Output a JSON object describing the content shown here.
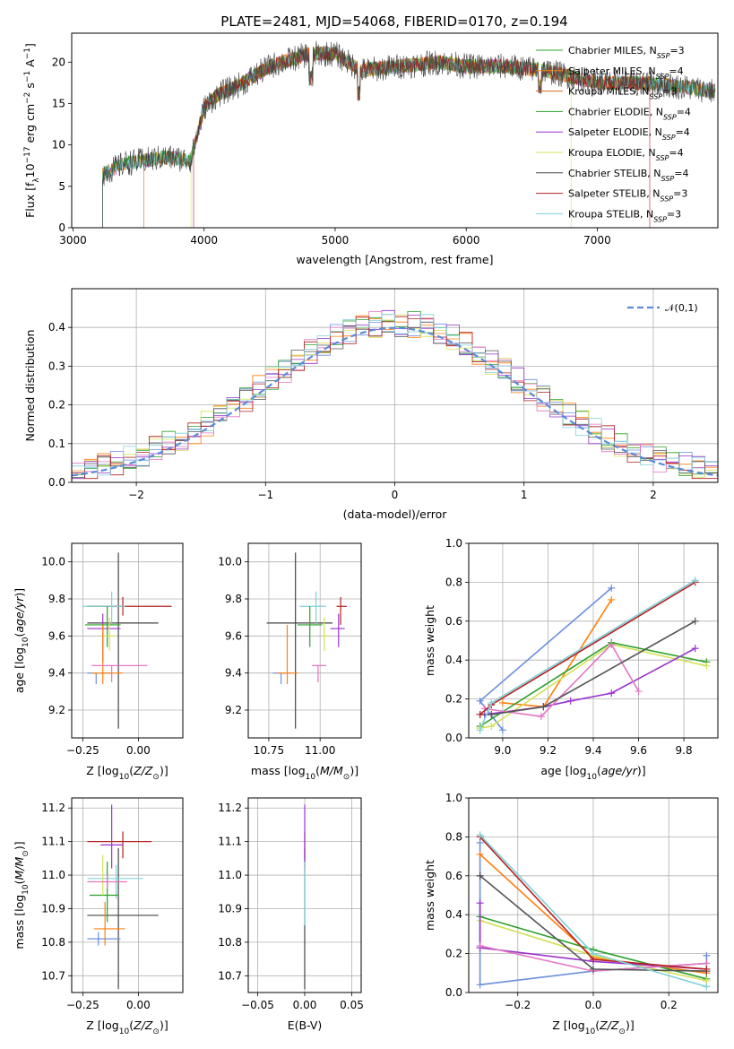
{
  "title": "PLATE=2481, MJD=54068, FIBERID=0170, z=0.194",
  "chart_data": [
    {
      "id": "spectrum",
      "type": "line",
      "xlabel": "wavelength [Angstrom, rest frame]",
      "ylabel": "Flux [f_λ 10^-17 erg cm^-2 s^-1 A^-1]",
      "xlim": [
        2990,
        7920
      ],
      "ylim": [
        0,
        23.5
      ],
      "xticks": [
        3000,
        4000,
        5000,
        6000,
        7000
      ],
      "yticks": [
        0,
        5,
        10,
        15,
        20
      ],
      "grid": false,
      "legend_position": "right",
      "legend": [
        {
          "label": "Chabrier MILES, N_SSP=3",
          "color": "#2ca02c"
        },
        {
          "label": "Salpeter MILES, N_SSP=4",
          "color": "#ff7f0e"
        },
        {
          "label": "Kroupa MILES, N_SSP=3",
          "color": "#d2691e"
        },
        {
          "label": "Chabrier ELODIE, N_SSP=4",
          "color": "#2ca02c"
        },
        {
          "label": "Salpeter ELODIE, N_SSP=4",
          "color": "#9932cc"
        },
        {
          "label": "Kroupa ELODIE, N_SSP=4",
          "color": "#d4e157"
        },
        {
          "label": "Chabrier STELIB, N_SSP=4",
          "color": "#444444"
        },
        {
          "label": "Salpeter STELIB, N_SSP=3",
          "color": "#b22222"
        },
        {
          "label": "Kroupa STELIB, N_SSP=3",
          "color": "#80d0d8"
        }
      ],
      "data_coverage_start": [
        {
          "label": "Chabrier STELIB, N_SSP=4",
          "start_wavelength": 3225
        },
        {
          "label": "Kroupa MILES, N_SSP=3",
          "start_wavelength": 3540
        },
        {
          "label": "Kroupa ELODIE, N_SSP=4",
          "start_wavelength": 3900
        },
        {
          "label": "Salpeter STELIB, N_SSP=3",
          "start_wavelength": 3920
        }
      ],
      "data_coverage_end": [
        {
          "label": "Kroupa ELODIE, N_SSP=4",
          "end_wavelength": 6800
        },
        {
          "label": "Salpeter STELIB, N_SSP=3",
          "end_wavelength": 7400
        }
      ],
      "continuum": {
        "wavelength": [
          3225,
          3400,
          3700,
          3900,
          4000,
          4100,
          4300,
          4500,
          4800,
          5000,
          5200,
          5500,
          5800,
          6000,
          6300,
          6600,
          7000,
          7400,
          7900
        ],
        "flux": [
          6.5,
          7.8,
          8.5,
          8.2,
          14.5,
          16.0,
          17.5,
          19.5,
          21.0,
          21.0,
          19.0,
          19.5,
          20.0,
          19.5,
          19.5,
          19.0,
          17.5,
          17.5,
          16.5
        ]
      }
    },
    {
      "id": "residuals",
      "type": "step",
      "xlabel": "(data-model)/error",
      "ylabel": "Normed distribution",
      "xlim": [
        -2.5,
        2.5
      ],
      "ylim": [
        0,
        0.5
      ],
      "xticks": [
        -2,
        -1,
        0,
        1,
        2
      ],
      "yticks": [
        0.0,
        0.1,
        0.2,
        0.3,
        0.4
      ],
      "grid": true,
      "legend_position": "upper right",
      "legend": [
        {
          "label": "𝒩(0,1)",
          "color": "#5b8bd9",
          "style": "dashed"
        }
      ],
      "gaussian": {
        "mean": 0,
        "sigma": 1
      },
      "bin_width": 0.1,
      "series_colors": [
        "#6b8fdf",
        "#ff7f0e",
        "#2ca02c",
        "#d4e157",
        "#9932cc",
        "#e377c2",
        "#555555",
        "#b22222",
        "#80d0d8"
      ]
    },
    {
      "id": "age_vs_Z",
      "type": "errorbar",
      "xlabel": "Z [log10(Z/Z☉)]",
      "ylabel": "age [log10(age/yr)]",
      "xlim": [
        -0.3,
        0.2
      ],
      "ylim": [
        9.05,
        10.1
      ],
      "xticks": [
        -0.25,
        0.0
      ],
      "yticks": [
        9.2,
        9.4,
        9.6,
        9.8,
        10.0
      ],
      "grid": true,
      "points": [
        {
          "x": -0.09,
          "y": 9.67,
          "xerr": [
            0.14,
            0.18
          ],
          "yerr": [
            0.57,
            0.38
          ],
          "color": "#444444"
        },
        {
          "x": -0.07,
          "y": 9.76,
          "xerr": [
            0.16,
            0.22
          ],
          "yerr": [
            0.05,
            0.05
          ],
          "color": "#b22222"
        },
        {
          "x": -0.12,
          "y": 9.76,
          "xerr": [
            0.13,
            0.06
          ],
          "yerr": [
            0.1,
            0.08
          ],
          "color": "#80d0d8"
        },
        {
          "x": -0.16,
          "y": 9.64,
          "xerr": [
            0.07,
            0.08
          ],
          "yerr": [
            0.18,
            0.08
          ],
          "color": "#9932cc"
        },
        {
          "x": -0.14,
          "y": 9.66,
          "xerr": [
            0.1,
            0.06
          ],
          "yerr": [
            0.12,
            0.1
          ],
          "color": "#2ca02c"
        },
        {
          "x": -0.13,
          "y": 9.6,
          "xerr": [
            0.03,
            0.03
          ],
          "yerr": [
            0.08,
            0.1
          ],
          "color": "#d4e157"
        },
        {
          "x": -0.19,
          "y": 9.4,
          "xerr": [
            0.04,
            0.07
          ],
          "yerr": [
            0.06,
            0.0
          ],
          "color": "#6b8fdf"
        },
        {
          "x": -0.16,
          "y": 9.4,
          "xerr": [
            0.05,
            0.09
          ],
          "yerr": [
            0.06,
            0.26
          ],
          "color": "#ff7f0e"
        },
        {
          "x": -0.12,
          "y": 9.44,
          "xerr": [
            0.09,
            0.16
          ],
          "yerr": [
            0.09,
            0.0
          ],
          "color": "#e377c2"
        }
      ]
    },
    {
      "id": "age_vs_mass",
      "type": "errorbar",
      "xlabel": "mass [log10(M/M☉)]",
      "ylabel": "",
      "xlim": [
        10.65,
        11.2
      ],
      "ylim": [
        9.05,
        10.1
      ],
      "xticks": [
        10.75,
        11.0
      ],
      "xticklabels": [
        "10.75",
        "11.00"
      ],
      "yticks": [
        9.2,
        9.4,
        9.6,
        9.8,
        10.0
      ],
      "grid": true,
      "points": [
        {
          "x": 10.88,
          "y": 9.67,
          "xerr": [
            0.14,
            0.18
          ],
          "yerr": [
            0.57,
            0.38
          ],
          "color": "#444444"
        },
        {
          "x": 11.1,
          "y": 9.76,
          "xerr": [
            0.02,
            0.03
          ],
          "yerr": [
            0.1,
            0.05
          ],
          "color": "#b22222"
        },
        {
          "x": 10.98,
          "y": 9.76,
          "xerr": [
            0.08,
            0.05
          ],
          "yerr": [
            0.1,
            0.08
          ],
          "color": "#80d0d8"
        },
        {
          "x": 11.09,
          "y": 9.64,
          "xerr": [
            0.04,
            0.03
          ],
          "yerr": [
            0.1,
            0.08
          ],
          "color": "#9932cc"
        },
        {
          "x": 10.95,
          "y": 9.66,
          "xerr": [
            0.06,
            0.06
          ],
          "yerr": [
            0.12,
            0.1
          ],
          "color": "#2ca02c"
        },
        {
          "x": 11.02,
          "y": 9.6,
          "xerr": [
            0.01,
            0.02
          ],
          "yerr": [
            0.08,
            0.1
          ],
          "color": "#d4e157"
        },
        {
          "x": 10.81,
          "y": 9.4,
          "xerr": [
            0.04,
            0.05
          ],
          "yerr": [
            0.06,
            0.0
          ],
          "color": "#6b8fdf"
        },
        {
          "x": 10.84,
          "y": 9.4,
          "xerr": [
            0.05,
            0.05
          ],
          "yerr": [
            0.06,
            0.26
          ],
          "color": "#ff7f0e"
        },
        {
          "x": 10.99,
          "y": 9.44,
          "xerr": [
            0.03,
            0.04
          ],
          "yerr": [
            0.09,
            0.0
          ],
          "color": "#e377c2"
        }
      ]
    },
    {
      "id": "weight_vs_age",
      "type": "line",
      "xlabel": "age [log10(age/yr)]",
      "ylabel": "mass weight",
      "xlim": [
        8.85,
        9.95
      ],
      "ylim": [
        0,
        1
      ],
      "xticks": [
        9.0,
        9.2,
        9.4,
        9.6,
        9.8
      ],
      "yticks": [
        0.0,
        0.2,
        0.4,
        0.6,
        0.8,
        1.0
      ],
      "grid": true,
      "series": [
        {
          "color": "#6b8fdf",
          "x": [
            9.0,
            8.9,
            9.48
          ],
          "y": [
            0.04,
            0.19,
            0.77
          ]
        },
        {
          "color": "#ff7f0e",
          "x": [
            9.0,
            9.18,
            9.48
          ],
          "y": [
            0.18,
            0.16,
            0.71
          ]
        },
        {
          "color": "#2ca02c",
          "x": [
            8.9,
            9.48,
            9.9
          ],
          "y": [
            0.06,
            0.49,
            0.39
          ]
        },
        {
          "color": "#d4e157",
          "x": [
            8.9,
            8.95,
            9.48,
            9.9
          ],
          "y": [
            0.05,
            0.06,
            0.48,
            0.37
          ]
        },
        {
          "color": "#9932cc",
          "x": [
            8.92,
            9.18,
            9.3,
            9.48,
            9.85
          ],
          "y": [
            0.12,
            0.16,
            0.19,
            0.23,
            0.46
          ]
        },
        {
          "color": "#e377c2",
          "x": [
            8.92,
            9.17,
            9.48,
            9.6
          ],
          "y": [
            0.15,
            0.11,
            0.48,
            0.24
          ]
        },
        {
          "color": "#555555",
          "x": [
            8.9,
            8.95,
            9.18,
            9.85
          ],
          "y": [
            0.12,
            0.12,
            0.16,
            0.6
          ]
        },
        {
          "color": "#b22222",
          "x": [
            8.9,
            8.95,
            9.85
          ],
          "y": [
            0.12,
            0.17,
            0.8
          ]
        },
        {
          "color": "#80d0d8",
          "x": [
            8.9,
            8.95,
            9.85
          ],
          "y": [
            0.04,
            0.18,
            0.81
          ]
        }
      ]
    },
    {
      "id": "mass_vs_Z",
      "type": "errorbar",
      "xlabel": "Z [log10(Z/Z☉)]",
      "ylabel": "mass [log10(M/M☉)]",
      "xlim": [
        -0.3,
        0.2
      ],
      "ylim": [
        10.65,
        11.23
      ],
      "xticks": [
        -0.25,
        0.0
      ],
      "yticks": [
        10.7,
        10.8,
        10.9,
        11.0,
        11.1,
        11.2
      ],
      "grid": true,
      "points": [
        {
          "x": -0.09,
          "y": 10.88,
          "xerr": [
            0.14,
            0.18
          ],
          "yerr": [
            0.22,
            0.2
          ],
          "color": "#444444"
        },
        {
          "x": -0.07,
          "y": 11.1,
          "xerr": [
            0.16,
            0.13
          ],
          "yerr": [
            0.05,
            0.03
          ],
          "color": "#b22222"
        },
        {
          "x": -0.1,
          "y": 10.99,
          "xerr": [
            0.13,
            0.12
          ],
          "yerr": [
            0.06,
            0.04
          ],
          "color": "#80d0d8"
        },
        {
          "x": -0.12,
          "y": 11.09,
          "xerr": [
            0.05,
            0.05
          ],
          "yerr": [
            0.07,
            0.12
          ],
          "color": "#9932cc"
        },
        {
          "x": -0.14,
          "y": 10.94,
          "xerr": [
            0.08,
            0.05
          ],
          "yerr": [
            0.08,
            0.1
          ],
          "color": "#2ca02c"
        },
        {
          "x": -0.16,
          "y": 10.98,
          "xerr": [
            0.02,
            0.02
          ],
          "yerr": [
            0.04,
            0.08
          ],
          "color": "#d4e157"
        },
        {
          "x": -0.18,
          "y": 10.81,
          "xerr": [
            0.05,
            0.1
          ],
          "yerr": [
            0.02,
            0.02
          ],
          "color": "#6b8fdf"
        },
        {
          "x": -0.15,
          "y": 10.84,
          "xerr": [
            0.05,
            0.09
          ],
          "yerr": [
            0.05,
            0.08
          ],
          "color": "#ff7f0e"
        },
        {
          "x": -0.14,
          "y": 10.98,
          "xerr": [
            0.09,
            0.09
          ],
          "yerr": [
            0.02,
            0.02
          ],
          "color": "#e377c2"
        }
      ]
    },
    {
      "id": "mass_vs_ebv",
      "type": "errorbar",
      "xlabel": "E(B-V)",
      "ylabel": "",
      "xlim": [
        -0.06,
        0.06
      ],
      "ylim": [
        10.65,
        11.23
      ],
      "xticks": [
        -0.05,
        0.0,
        0.05
      ],
      "xticklabels": [
        "−0.05",
        "0.00",
        "0.05"
      ],
      "yticks": [
        10.7,
        10.8,
        10.9,
        11.0,
        11.1,
        11.2
      ],
      "grid": true,
      "points": [
        {
          "x": 0.0,
          "y": 10.88,
          "xerr": [
            0,
            0
          ],
          "yerr": [
            0.22,
            0.2
          ],
          "color": "#444444"
        },
        {
          "x": 0.0,
          "y": 11.1,
          "xerr": [
            0,
            0
          ],
          "yerr": [
            0.05,
            0.03
          ],
          "color": "#b22222"
        },
        {
          "x": 0.0,
          "y": 11.09,
          "xerr": [
            0,
            0
          ],
          "yerr": [
            0.07,
            0.12
          ],
          "color": "#9932cc"
        },
        {
          "x": 0.0,
          "y": 10.99,
          "xerr": [
            0,
            0
          ],
          "yerr": [
            0.14,
            0.05
          ],
          "color": "#80d0d8"
        }
      ]
    },
    {
      "id": "weight_vs_Z",
      "type": "line",
      "xlabel": "Z [log10(Z/Z☉)]",
      "ylabel": "mass weight",
      "xlim": [
        -0.33,
        0.33
      ],
      "ylim": [
        0,
        1
      ],
      "xticks": [
        -0.2,
        0.0,
        0.2
      ],
      "xticklabels": [
        "−0.2",
        "0.0",
        "0.2"
      ],
      "yticks": [
        0.0,
        0.2,
        0.4,
        0.6,
        0.8,
        1.0
      ],
      "grid": true,
      "series": [
        {
          "color": "#6b8fdf",
          "x": [
            -0.3,
            -0.3,
            0.0,
            0.3,
            0.3
          ],
          "y": [
            0.77,
            0.04,
            0.11,
            0.15,
            0.19
          ]
        },
        {
          "color": "#ff7f0e",
          "x": [
            -0.3,
            0.0,
            0.3
          ],
          "y": [
            0.71,
            0.18,
            0.1
          ]
        },
        {
          "color": "#2ca02c",
          "x": [
            -0.3,
            0.0,
            0.3
          ],
          "y": [
            0.39,
            0.22,
            0.07
          ]
        },
        {
          "color": "#d4e157",
          "x": [
            -0.3,
            0.0,
            0.3
          ],
          "y": [
            0.37,
            0.19,
            0.06
          ]
        },
        {
          "color": "#9932cc",
          "x": [
            -0.3,
            -0.3,
            0.0,
            0.3
          ],
          "y": [
            0.46,
            0.23,
            0.16,
            0.12
          ]
        },
        {
          "color": "#e377c2",
          "x": [
            -0.3,
            0.0,
            0.3
          ],
          "y": [
            0.24,
            0.11,
            0.15
          ]
        },
        {
          "color": "#555555",
          "x": [
            -0.3,
            -0.3,
            0.0,
            0.3
          ],
          "y": [
            0.6,
            0.6,
            0.12,
            0.11
          ]
        },
        {
          "color": "#b22222",
          "x": [
            -0.3,
            0.0,
            0.3
          ],
          "y": [
            0.8,
            0.17,
            0.12
          ]
        },
        {
          "color": "#80d0d8",
          "x": [
            -0.3,
            0.0,
            0.3
          ],
          "y": [
            0.81,
            0.2,
            0.03
          ]
        }
      ]
    }
  ]
}
